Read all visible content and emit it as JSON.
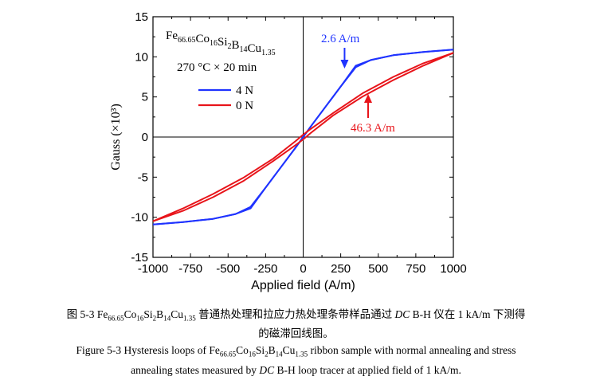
{
  "chart_data": {
    "type": "line",
    "xlabel": "Applied field (A/m)",
    "ylabel": "Gauss (×10³)",
    "xlim": [
      -1000,
      1000
    ],
    "ylim": [
      -15,
      15
    ],
    "xticks": [
      -1000,
      -750,
      -500,
      -250,
      0,
      250,
      500,
      750,
      1000
    ],
    "yticks": [
      -15,
      -10,
      -5,
      0,
      5,
      10,
      15
    ],
    "x_tick_labels": [
      "-1000",
      "-750",
      "-500",
      "-250",
      "0",
      "250",
      "500",
      "750",
      "1000"
    ],
    "y_tick_labels": [
      "-15",
      "-10",
      "-5",
      "0",
      "5",
      "10",
      "15"
    ],
    "grid": false,
    "legend_position": "top-left",
    "annotation_title": {
      "base": [
        "Fe",
        "Co",
        "Si",
        "B",
        "Cu"
      ],
      "subs": [
        "66.65",
        "16",
        "2",
        "14",
        "1.35"
      ]
    },
    "annotation_condition": "270 °C × 20 min",
    "series": [
      {
        "name": "4 N",
        "color": "#1f33ff",
        "branches": [
          {
            "x": [
              -1000,
              -800,
              -600,
              -450,
              -350,
              -250,
              -150,
              -50,
              0,
              50,
              150,
              250,
              350,
              450,
              600,
              800,
              1000
            ],
            "y": [
              -10.9,
              -10.6,
              -10.2,
              -9.6,
              -8.7,
              -6.3,
              -3.8,
              -1.3,
              0.0,
              1.3,
              3.8,
              6.3,
              8.9,
              9.6,
              10.2,
              10.6,
              10.9
            ]
          },
          {
            "x": [
              -1000,
              -800,
              -600,
              -450,
              -350,
              -250,
              -150,
              -50,
              0,
              50,
              150,
              250,
              350,
              450,
              600,
              800,
              1000
            ],
            "y": [
              -10.9,
              -10.6,
              -10.2,
              -9.6,
              -8.9,
              -6.3,
              -3.8,
              -1.3,
              0.0,
              1.3,
              3.8,
              6.3,
              8.7,
              9.6,
              10.2,
              10.6,
              10.9
            ]
          }
        ]
      },
      {
        "name": "0 N",
        "color": "#e8141a",
        "branches": [
          {
            "x": [
              -1000,
              -800,
              -600,
              -400,
              -200,
              -50,
              0,
              50,
              200,
              400,
              600,
              800,
              1000
            ],
            "y": [
              -10.5,
              -8.9,
              -7.1,
              -5.1,
              -2.7,
              -0.5,
              0.3,
              1.0,
              3.0,
              5.5,
              7.5,
              9.2,
              10.5
            ]
          },
          {
            "x": [
              -1000,
              -800,
              -600,
              -400,
              -200,
              -50,
              0,
              50,
              200,
              400,
              600,
              800,
              1000
            ],
            "y": [
              -10.5,
              -9.2,
              -7.5,
              -5.5,
              -3.0,
              -1.0,
              -0.3,
              0.5,
              2.7,
              5.1,
              7.1,
              8.9,
              10.5
            ]
          }
        ]
      }
    ],
    "annotations": [
      {
        "text": "2.6 A/m",
        "color": "#1f33ff",
        "x": 265,
        "y": 8.6
      },
      {
        "text": "46.3 A/m",
        "color": "#e8141a",
        "x": 415,
        "y": 5.2
      }
    ]
  },
  "caption": {
    "cn_prefix": "图 5-3 ",
    "cn_suffix": " 普通热处理和拉应力热处理条带样品通过",
    "cn_dc": "DC",
    "cn_tail": " B-H 仪在 1 kA/m 下测得",
    "cn_line2": "的磁滞回线图。",
    "en_prefix": "Figure 5-3 Hysteresis loops of ",
    "en_suffix": " ribbon sample with normal annealing and stress",
    "en_line2_a": "annealing states measured by ",
    "en_dc": "DC",
    "en_line2_b": " B-H loop tracer at applied field of 1 kA/m."
  }
}
